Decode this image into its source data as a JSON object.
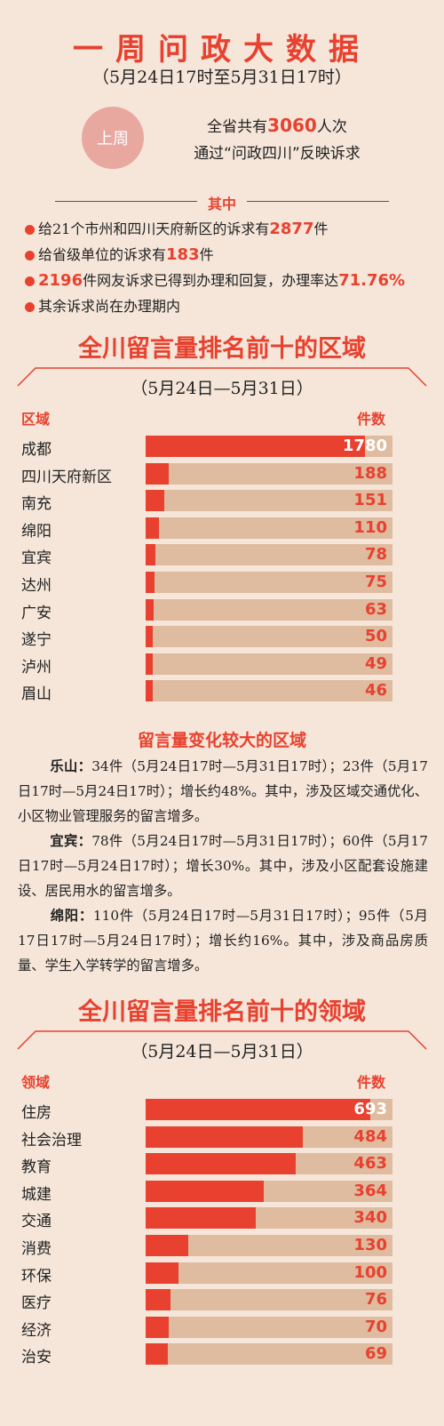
{
  "header": {
    "title": "一周问政大数据",
    "subtitle": "（5月24日17时至5月31日17时）"
  },
  "summary": {
    "badge": "上周",
    "line1_prefix": "全省共有",
    "line1_number": "3060",
    "line1_suffix": "人次",
    "line2": "通过“问政四川”反映诉求"
  },
  "breakdown": {
    "heading": "其中",
    "items": [
      {
        "prefix": "给21个市州和四川天府新区的诉求有",
        "number": "2877",
        "suffix": "件"
      },
      {
        "prefix": "给省级单位的诉求有",
        "number": "183",
        "suffix": "件"
      },
      {
        "prefix": "",
        "number": "2196",
        "suffix": "件网友诉求已得到办理和回复，办理率达",
        "number2": "71.76%"
      },
      {
        "prefix": "其余诉求尚在办理期内",
        "number": "",
        "suffix": ""
      }
    ]
  },
  "regions": {
    "title": "全川留言量排名前十的区域",
    "date_range": "（5月24日—5月31日）",
    "col_left": "区域",
    "col_right": "件数",
    "max": 2000,
    "rows": [
      {
        "label": "成都",
        "value": 1780
      },
      {
        "label": "四川天府新区",
        "value": 188
      },
      {
        "label": "南充",
        "value": 151
      },
      {
        "label": "绵阳",
        "value": 110
      },
      {
        "label": "宜宾",
        "value": 78
      },
      {
        "label": "达州",
        "value": 75
      },
      {
        "label": "广安",
        "value": 63
      },
      {
        "label": "遂宁",
        "value": 50
      },
      {
        "label": "泸州",
        "value": 49
      },
      {
        "label": "眉山",
        "value": 46
      }
    ]
  },
  "changes": {
    "title": "留言量变化较大的区域",
    "items": [
      {
        "name": "乐山：",
        "text": "34件（5月24日17时—5月31日17时）；23件（5月17日17时—5月24日17时）；增长约48%。其中，涉及区域交通优化、小区物业管理服务的留言增多。"
      },
      {
        "name": "宜宾：",
        "text": "78件（5月24日17时—5月31日17时）；60件（5月17日17时—5月24日17时）；增长30%。其中，涉及小区配套设施建设、居民用水的留言增多。"
      },
      {
        "name": "绵阳：",
        "text": "110件（5月24日17时—5月31日17时）；95件（5月17日17时—5月24日17时）；增长约16%。其中，涉及商品房质量、学生入学转学的留言增多。"
      }
    ]
  },
  "fields": {
    "title": "全川留言量排名前十的领域",
    "date_range": "（5月24日—5月31日）",
    "col_left": "领域",
    "col_right": "件数",
    "max": 760,
    "rows": [
      {
        "label": "住房",
        "value": 693
      },
      {
        "label": "社会治理",
        "value": 484
      },
      {
        "label": "教育",
        "value": 463
      },
      {
        "label": "城建",
        "value": 364
      },
      {
        "label": "交通",
        "value": 340
      },
      {
        "label": "消费",
        "value": 130
      },
      {
        "label": "环保",
        "value": 100
      },
      {
        "label": "医疗",
        "value": 76
      },
      {
        "label": "经济",
        "value": 70
      },
      {
        "label": "治安",
        "value": 69
      }
    ]
  },
  "colors": {
    "accent": "#e8412f",
    "track": "#dfbba0",
    "background": "#f5e6d9",
    "badge": "#e8a8a0"
  }
}
